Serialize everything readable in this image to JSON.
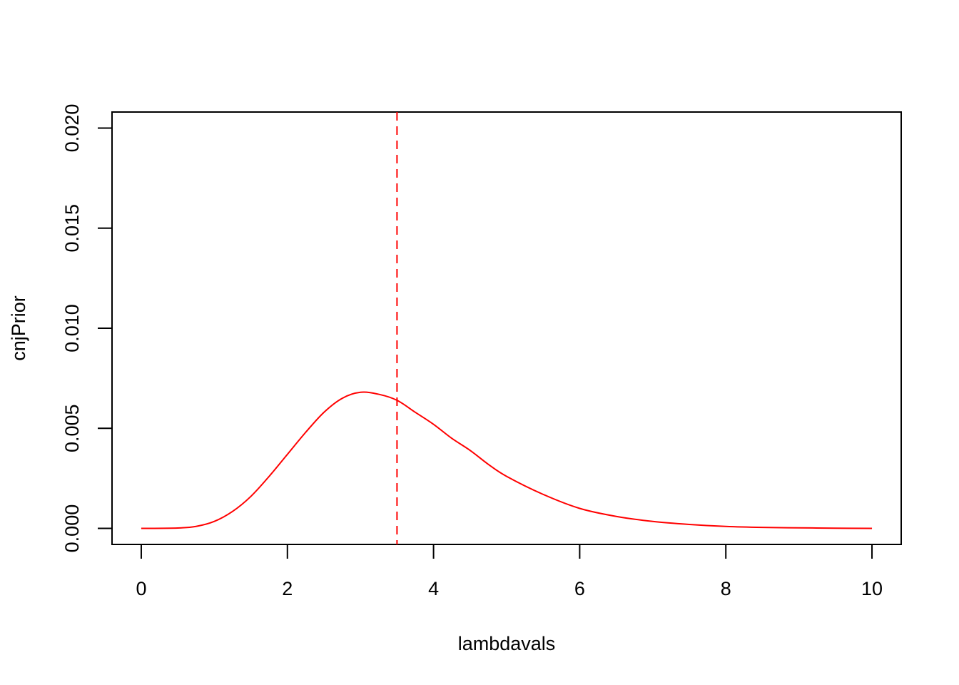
{
  "chart_data": {
    "type": "line",
    "title": "",
    "xlabel": "lambdavals",
    "ylabel": "cnjPrior",
    "xlim": [
      -0.4,
      10.4
    ],
    "ylim": [
      -0.0008,
      0.0208
    ],
    "xticks": [
      0,
      2,
      4,
      6,
      8,
      10
    ],
    "xtick_labels": [
      "0",
      "2",
      "4",
      "6",
      "8",
      "10"
    ],
    "yticks": [
      0.0,
      0.005,
      0.01,
      0.015,
      0.02
    ],
    "ytick_labels": [
      "0.000",
      "0.005",
      "0.010",
      "0.015",
      "0.020"
    ],
    "grid": false,
    "series": [
      {
        "color": "#ff0000",
        "style": "solid",
        "x": [
          0,
          0.5,
          0.75,
          1.0,
          1.25,
          1.5,
          1.75,
          2.0,
          2.25,
          2.5,
          2.75,
          3.0,
          3.25,
          3.5,
          3.75,
          4.0,
          4.25,
          4.5,
          4.75,
          5.0,
          5.5,
          6.0,
          6.5,
          7.0,
          7.5,
          8.0,
          8.5,
          9.0,
          9.5,
          10.0
        ],
        "y": [
          0.0,
          2e-05,
          0.0001,
          0.00035,
          0.00085,
          0.0016,
          0.0026,
          0.0037,
          0.0048,
          0.0058,
          0.0065,
          0.0068,
          0.0067,
          0.0064,
          0.0058,
          0.0052,
          0.0045,
          0.0039,
          0.0032,
          0.0026,
          0.0017,
          0.001,
          0.0006,
          0.00035,
          0.0002,
          0.0001,
          5e-05,
          3e-05,
          1e-05,
          0.0
        ]
      }
    ],
    "vlines": [
      {
        "x": 3.5,
        "color": "#ff0000",
        "style": "dashed"
      }
    ]
  }
}
